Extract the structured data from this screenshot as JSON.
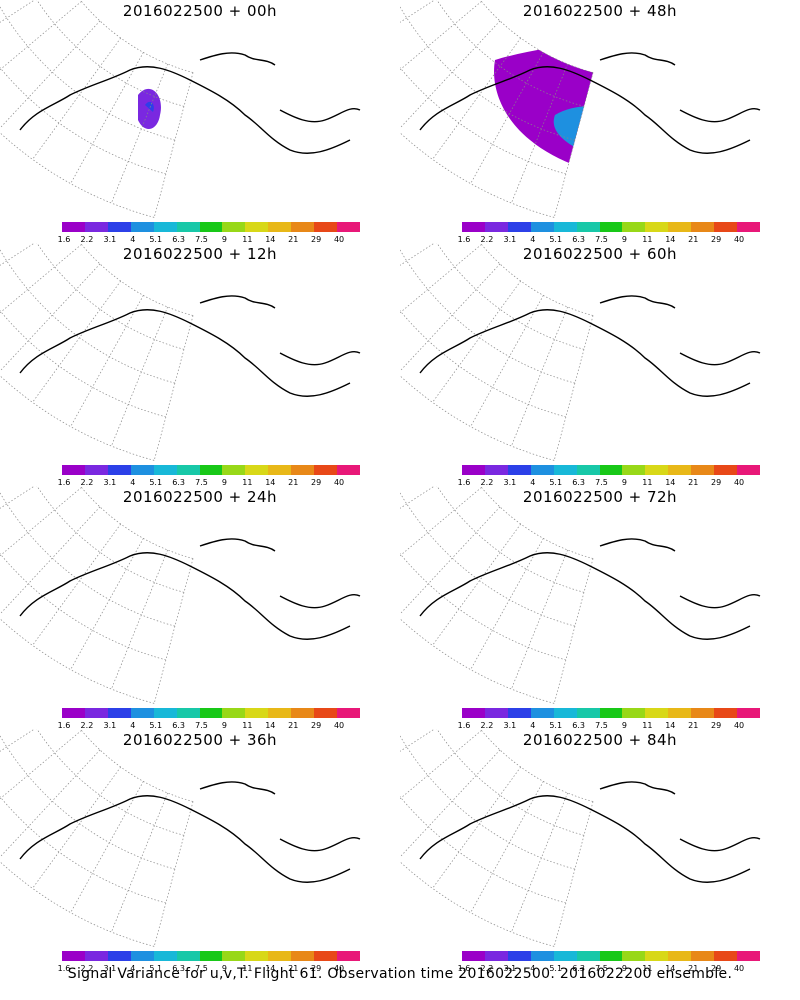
{
  "colorbar": {
    "colors": [
      "#9a00c8",
      "#7a28e0",
      "#2c40e8",
      "#1e90e0",
      "#18b8d8",
      "#18c8a8",
      "#18c818",
      "#98d818",
      "#d8d818",
      "#e8b818",
      "#e88818",
      "#e84818",
      "#e81878"
    ],
    "labels": [
      "1.6",
      "2.2",
      "3.1",
      "4",
      "5.1",
      "6.3",
      "7.5",
      "9",
      "11",
      "14",
      "21",
      "29",
      "40"
    ]
  },
  "panels": [
    {
      "title": "2016022500 + 00h"
    },
    {
      "title": "2016022500 + 48h"
    },
    {
      "title": "2016022500 + 12h"
    },
    {
      "title": "2016022500 + 60h"
    },
    {
      "title": "2016022500 + 24h"
    },
    {
      "title": "2016022500 + 72h"
    },
    {
      "title": "2016022500 + 36h"
    },
    {
      "title": "2016022500 + 84h"
    }
  ],
  "caption": "Signal Variance for u,v,T. Flight 61. Observation time 2016022500. 2016022200 ensemble."
}
